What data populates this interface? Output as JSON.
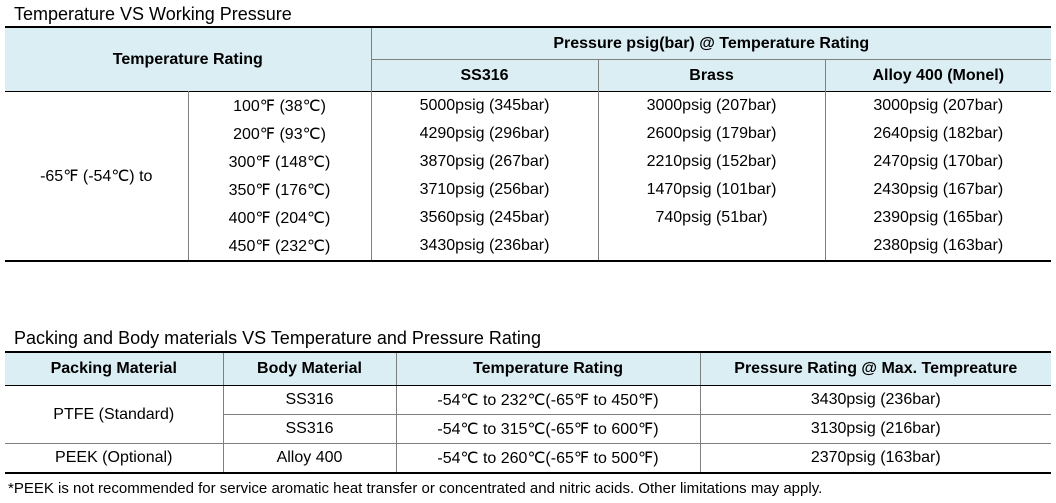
{
  "table1": {
    "title": "Temperature VS Working Pressure",
    "header_temp": "Temperature Rating",
    "header_pressure": "Pressure psig(bar) @ Temperature Rating",
    "materials": [
      "SS316",
      "Brass",
      "Alloy 400 (Monel)"
    ],
    "range_label": "-65℉ (-54℃) to",
    "rows": [
      {
        "temp": "100℉ (38℃)",
        "ss316": "5000psig (345bar)",
        "brass": "3000psig (207bar)",
        "alloy": "3000psig (207bar)"
      },
      {
        "temp": "200℉ (93℃)",
        "ss316": "4290psig (296bar)",
        "brass": "2600psig (179bar)",
        "alloy": "2640psig (182bar)"
      },
      {
        "temp": "300℉ (148℃)",
        "ss316": "3870psig (267bar)",
        "brass": "2210psig (152bar)",
        "alloy": "2470psig (170bar)"
      },
      {
        "temp": "350℉ (176℃)",
        "ss316": "3710psig (256bar)",
        "brass": "1470psig (101bar)",
        "alloy": "2430psig (167bar)"
      },
      {
        "temp": "400℉ (204℃)",
        "ss316": "3560psig (245bar)",
        "brass": "740psig (51bar)",
        "alloy": "2390psig (165bar)"
      },
      {
        "temp": "450℉ (232℃)",
        "ss316": "3430psig (236bar)",
        "brass": "",
        "alloy": "2380psig (163bar)"
      }
    ]
  },
  "table2": {
    "title": "Packing and Body materials VS Temperature and Pressure Rating",
    "headers": [
      "Packing Material",
      "Body Material",
      "Temperature Rating",
      "Pressure Rating @ Max. Tempreature"
    ],
    "ptfe_label": "PTFE (Standard)",
    "peek_label": "PEEK (Optional)",
    "rows": [
      {
        "body": "SS316",
        "temp": "-54℃ to 232℃(-65℉ to 450℉)",
        "pressure": "3430psig (236bar)"
      },
      {
        "body": "SS316",
        "temp": "-54℃ to 315℃(-65℉ to 600℉)",
        "pressure": "3130psig (216bar)"
      },
      {
        "body": "Alloy 400",
        "temp": "-54℃ to 260℃(-65℉ to 500℉)",
        "pressure": "2370psig (163bar)"
      }
    ]
  },
  "footnote": "*PEEK is not recommended for service aromatic heat transfer or concentrated and nitric acids. Other limitations may apply.",
  "colors": {
    "header_bg": "#dbeef4"
  }
}
